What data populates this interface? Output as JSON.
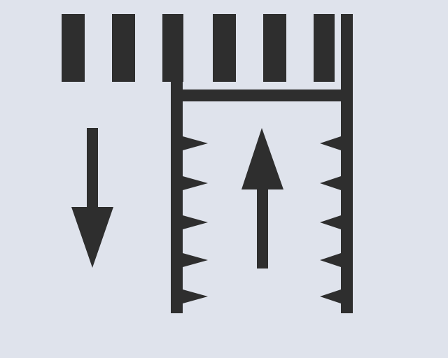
{
  "diagram": {
    "colors": {
      "background": "#dfe3ec",
      "ink": "#2e2e2e"
    },
    "elements": {
      "top_bars": 6,
      "left_arrow": "down",
      "inner_arrow": "up",
      "teeth_per_wall": 5
    }
  }
}
